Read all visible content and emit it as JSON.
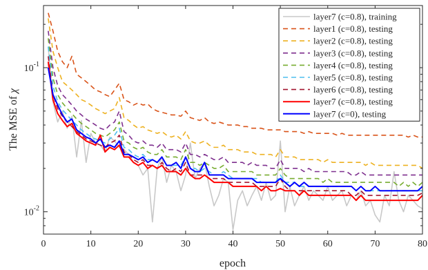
{
  "chart_data": {
    "type": "line",
    "xlabel": "epoch",
    "ylabel_main": "The MSE of ",
    "ylabel_symbol": "χ",
    "xlim": [
      0,
      80
    ],
    "ylim": [
      0.007,
      0.27
    ],
    "yscale": "log",
    "xticks": [
      0,
      10,
      20,
      30,
      40,
      50,
      60,
      70,
      80
    ],
    "yticks": [
      {
        "value": 0.1,
        "base": "10",
        "exp": "-1"
      },
      {
        "value": 0.01,
        "base": "10",
        "exp": "-2"
      }
    ],
    "grid": false,
    "legend_position": "top-right",
    "series": [
      {
        "name": "layer7 (c=0.8), training",
        "color": "#c8c8c8",
        "dash": "solid",
        "width": 1.6,
        "y": [
          0.14,
          0.058,
          0.042,
          0.05,
          0.038,
          0.046,
          0.024,
          0.043,
          0.022,
          0.035,
          0.03,
          0.029,
          0.026,
          0.033,
          0.031,
          0.028,
          0.027,
          0.025,
          0.022,
          0.021,
          0.018,
          0.02,
          0.0085,
          0.02,
          0.024,
          0.016,
          0.021,
          0.019,
          0.014,
          0.018,
          0.03,
          0.017,
          0.02,
          0.022,
          0.015,
          0.011,
          0.013,
          0.017,
          0.016,
          0.0075,
          0.012,
          0.014,
          0.011,
          0.013,
          0.015,
          0.012,
          0.016,
          0.012,
          0.013,
          0.031,
          0.01,
          0.015,
          0.011,
          0.013,
          0.015,
          0.012,
          0.014,
          0.013,
          0.012,
          0.015,
          0.012,
          0.013,
          0.014,
          0.011,
          0.013,
          0.012,
          0.014,
          0.011,
          0.012,
          0.0095,
          0.0085,
          0.013,
          0.011,
          0.019,
          0.012,
          0.01,
          0.013,
          0.012,
          0.011,
          0.0105
        ]
      },
      {
        "name": "layer1 (c=0.8), testing",
        "color": "#d95319",
        "dash": "dashed",
        "width": 1.6,
        "y": [
          0.24,
          0.18,
          0.13,
          0.11,
          0.1,
          0.12,
          0.09,
          0.085,
          0.08,
          0.075,
          0.07,
          0.068,
          0.065,
          0.063,
          0.07,
          0.078,
          0.06,
          0.058,
          0.055,
          0.057,
          0.055,
          0.056,
          0.052,
          0.05,
          0.049,
          0.048,
          0.047,
          0.047,
          0.046,
          0.05,
          0.045,
          0.044,
          0.043,
          0.045,
          0.042,
          0.041,
          0.042,
          0.041,
          0.04,
          0.04,
          0.04,
          0.039,
          0.039,
          0.038,
          0.038,
          0.038,
          0.037,
          0.037,
          0.037,
          0.037,
          0.036,
          0.036,
          0.036,
          0.036,
          0.035,
          0.036,
          0.035,
          0.035,
          0.035,
          0.035,
          0.035,
          0.034,
          0.035,
          0.034,
          0.034,
          0.034,
          0.034,
          0.034,
          0.034,
          0.034,
          0.034,
          0.034,
          0.034,
          0.034,
          0.034,
          0.034,
          0.033,
          0.034,
          0.033,
          0.033
        ]
      },
      {
        "name": "layer2 (c=0.8), testing",
        "color": "#edb120",
        "dash": "dashed",
        "width": 1.6,
        "y": [
          0.22,
          0.13,
          0.1,
          0.08,
          0.075,
          0.07,
          0.065,
          0.06,
          0.058,
          0.055,
          0.052,
          0.05,
          0.048,
          0.05,
          0.052,
          0.062,
          0.045,
          0.043,
          0.04,
          0.038,
          0.039,
          0.037,
          0.036,
          0.035,
          0.036,
          0.034,
          0.033,
          0.034,
          0.032,
          0.036,
          0.031,
          0.03,
          0.03,
          0.031,
          0.029,
          0.028,
          0.028,
          0.029,
          0.027,
          0.027,
          0.027,
          0.026,
          0.026,
          0.026,
          0.025,
          0.025,
          0.025,
          0.025,
          0.024,
          0.027,
          0.024,
          0.024,
          0.024,
          0.023,
          0.023,
          0.023,
          0.023,
          0.023,
          0.022,
          0.023,
          0.022,
          0.022,
          0.022,
          0.022,
          0.022,
          0.022,
          0.022,
          0.021,
          0.022,
          0.021,
          0.021,
          0.021,
          0.021,
          0.021,
          0.021,
          0.021,
          0.021,
          0.021,
          0.021,
          0.02
        ]
      },
      {
        "name": "layer3 (c=0.8), testing",
        "color": "#7e2f8e",
        "dash": "dashed",
        "width": 1.6,
        "y": [
          0.18,
          0.1,
          0.075,
          0.065,
          0.06,
          0.055,
          0.05,
          0.047,
          0.044,
          0.042,
          0.04,
          0.038,
          0.037,
          0.04,
          0.042,
          0.05,
          0.036,
          0.034,
          0.031,
          0.03,
          0.031,
          0.029,
          0.029,
          0.028,
          0.03,
          0.027,
          0.027,
          0.027,
          0.026,
          0.03,
          0.025,
          0.025,
          0.024,
          0.025,
          0.024,
          0.023,
          0.023,
          0.024,
          0.022,
          0.022,
          0.022,
          0.022,
          0.021,
          0.022,
          0.021,
          0.021,
          0.021,
          0.02,
          0.02,
          0.023,
          0.02,
          0.02,
          0.02,
          0.02,
          0.019,
          0.02,
          0.019,
          0.019,
          0.019,
          0.019,
          0.019,
          0.019,
          0.019,
          0.019,
          0.018,
          0.018,
          0.019,
          0.018,
          0.018,
          0.018,
          0.018,
          0.018,
          0.018,
          0.018,
          0.018,
          0.018,
          0.018,
          0.018,
          0.018,
          0.018
        ]
      },
      {
        "name": "layer4 (c=0.8), testing",
        "color": "#77ac30",
        "dash": "dashed",
        "width": 1.6,
        "y": [
          0.16,
          0.085,
          0.065,
          0.057,
          0.052,
          0.048,
          0.044,
          0.041,
          0.039,
          0.037,
          0.035,
          0.034,
          0.033,
          0.035,
          0.037,
          0.042,
          0.031,
          0.03,
          0.028,
          0.027,
          0.028,
          0.026,
          0.025,
          0.025,
          0.027,
          0.024,
          0.024,
          0.024,
          0.023,
          0.027,
          0.022,
          0.022,
          0.021,
          0.022,
          0.021,
          0.02,
          0.02,
          0.021,
          0.019,
          0.019,
          0.019,
          0.019,
          0.019,
          0.019,
          0.018,
          0.018,
          0.018,
          0.018,
          0.018,
          0.02,
          0.018,
          0.017,
          0.017,
          0.017,
          0.017,
          0.017,
          0.017,
          0.017,
          0.016,
          0.017,
          0.016,
          0.016,
          0.016,
          0.016,
          0.016,
          0.016,
          0.016,
          0.016,
          0.016,
          0.016,
          0.016,
          0.016,
          0.016,
          0.016,
          0.015,
          0.016,
          0.015,
          0.016,
          0.015,
          0.016
        ]
      },
      {
        "name": "layer5 (c=0.8), testing",
        "color": "#4dbeee",
        "dash": "dashed",
        "width": 1.6,
        "y": [
          0.14,
          0.075,
          0.058,
          0.051,
          0.047,
          0.043,
          0.04,
          0.037,
          0.035,
          0.033,
          0.032,
          0.031,
          0.03,
          0.032,
          0.034,
          0.038,
          0.028,
          0.027,
          0.025,
          0.024,
          0.025,
          0.023,
          0.023,
          0.022,
          0.024,
          0.021,
          0.021,
          0.021,
          0.021,
          0.024,
          0.02,
          0.02,
          0.019,
          0.02,
          0.019,
          0.018,
          0.018,
          0.019,
          0.018,
          0.017,
          0.017,
          0.017,
          0.017,
          0.017,
          0.017,
          0.016,
          0.016,
          0.016,
          0.016,
          0.018,
          0.016,
          0.016,
          0.016,
          0.015,
          0.015,
          0.015,
          0.015,
          0.015,
          0.015,
          0.015,
          0.015,
          0.015,
          0.015,
          0.015,
          0.015,
          0.014,
          0.015,
          0.014,
          0.014,
          0.014,
          0.014,
          0.014,
          0.014,
          0.014,
          0.014,
          0.014,
          0.014,
          0.014,
          0.014,
          0.014
        ]
      },
      {
        "name": "layer6 (c=0.8), testing",
        "color": "#a2142f",
        "dash": "dashed",
        "width": 1.6,
        "y": [
          0.12,
          0.065,
          0.052,
          0.046,
          0.042,
          0.039,
          0.036,
          0.034,
          0.032,
          0.031,
          0.03,
          0.029,
          0.028,
          0.03,
          0.031,
          0.034,
          0.026,
          0.025,
          0.023,
          0.022,
          0.023,
          0.021,
          0.021,
          0.02,
          0.022,
          0.02,
          0.019,
          0.02,
          0.019,
          0.022,
          0.018,
          0.018,
          0.018,
          0.018,
          0.017,
          0.017,
          0.017,
          0.017,
          0.016,
          0.016,
          0.016,
          0.016,
          0.016,
          0.016,
          0.015,
          0.015,
          0.015,
          0.015,
          0.015,
          0.017,
          0.015,
          0.014,
          0.014,
          0.014,
          0.014,
          0.014,
          0.014,
          0.014,
          0.014,
          0.014,
          0.014,
          0.014,
          0.014,
          0.014,
          0.013,
          0.013,
          0.014,
          0.013,
          0.013,
          0.013,
          0.013,
          0.013,
          0.013,
          0.013,
          0.013,
          0.013,
          0.013,
          0.013,
          0.013,
          0.0135
        ]
      },
      {
        "name": "layer7 (c=0.8), testing",
        "color": "#ff0000",
        "dash": "solid",
        "width": 2,
        "y": [
          0.11,
          0.06,
          0.048,
          0.043,
          0.039,
          0.041,
          0.035,
          0.033,
          0.031,
          0.03,
          0.029,
          0.034,
          0.026,
          0.028,
          0.027,
          0.029,
          0.024,
          0.024,
          0.022,
          0.021,
          0.022,
          0.02,
          0.021,
          0.02,
          0.021,
          0.019,
          0.019,
          0.019,
          0.018,
          0.02,
          0.018,
          0.017,
          0.017,
          0.018,
          0.017,
          0.016,
          0.016,
          0.016,
          0.016,
          0.015,
          0.015,
          0.015,
          0.015,
          0.015,
          0.015,
          0.014,
          0.015,
          0.014,
          0.014,
          0.0145,
          0.014,
          0.014,
          0.014,
          0.013,
          0.014,
          0.013,
          0.013,
          0.013,
          0.013,
          0.013,
          0.013,
          0.013,
          0.013,
          0.013,
          0.013,
          0.012,
          0.013,
          0.012,
          0.012,
          0.012,
          0.012,
          0.012,
          0.012,
          0.012,
          0.012,
          0.012,
          0.012,
          0.012,
          0.012,
          0.013
        ]
      },
      {
        "name": "layer7 (c=0), testing",
        "color": "#0000ff",
        "dash": "solid",
        "width": 2,
        "y": [
          0.1,
          0.065,
          0.055,
          0.047,
          0.042,
          0.044,
          0.037,
          0.035,
          0.033,
          0.032,
          0.03,
          0.032,
          0.028,
          0.029,
          0.028,
          0.031,
          0.025,
          0.025,
          0.024,
          0.023,
          0.024,
          0.022,
          0.023,
          0.022,
          0.024,
          0.021,
          0.021,
          0.022,
          0.02,
          0.024,
          0.02,
          0.019,
          0.019,
          0.022,
          0.018,
          0.018,
          0.018,
          0.018,
          0.017,
          0.017,
          0.017,
          0.017,
          0.017,
          0.017,
          0.016,
          0.016,
          0.016,
          0.016,
          0.016,
          0.017,
          0.016,
          0.015,
          0.016,
          0.015,
          0.016,
          0.015,
          0.015,
          0.015,
          0.015,
          0.015,
          0.015,
          0.015,
          0.015,
          0.015,
          0.015,
          0.014,
          0.015,
          0.014,
          0.014,
          0.015,
          0.014,
          0.014,
          0.014,
          0.014,
          0.014,
          0.014,
          0.014,
          0.014,
          0.014,
          0.015
        ]
      }
    ]
  }
}
